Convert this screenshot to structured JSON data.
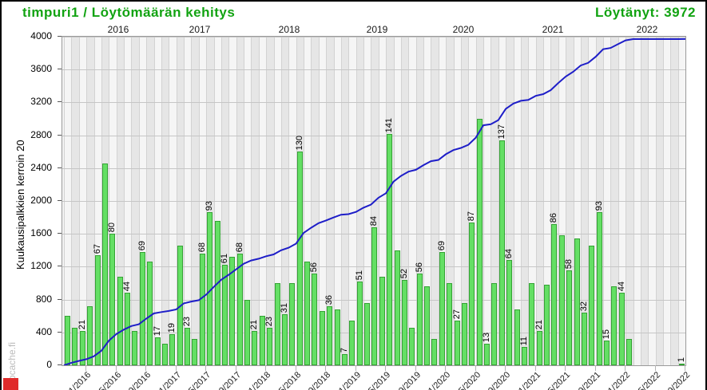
{
  "header": {
    "title": "timpuri1 / Löytömäärän kehitys",
    "found_label": "Löytänyt: 3972"
  },
  "watermark": "Geocache.fi",
  "colors": {
    "accent_green": "#12a312",
    "bar_fill": "#64df64",
    "bar_border": "#35a335",
    "cumulative_line": "#1e1ec8",
    "red_corner": "#e02b2b"
  },
  "chart_data": {
    "type": "bar",
    "title": "timpuri1 / Löytömäärän kehitys",
    "subtitle": "Löytänyt: 3972",
    "total_found": 3972,
    "ylabel": "Kuukausipalkkien kerroin 20",
    "bar_scale": 20,
    "ylim": [
      0,
      4000
    ],
    "grid": true,
    "y_ticks": [
      0,
      400,
      800,
      1200,
      1600,
      2000,
      2400,
      2800,
      3200,
      3600,
      4000
    ],
    "year_labels": [
      "2016",
      "2017",
      "2018",
      "2019",
      "2020",
      "2021",
      "2022"
    ],
    "x_ticks": [
      "01/2016",
      "05/2016",
      "09/2016",
      "01/2017",
      "05/2017",
      "09/2017",
      "01/2018",
      "05/2018",
      "09/2018",
      "01/2019",
      "05/2019",
      "09/2019",
      "01/2020",
      "05/2020",
      "09/2020",
      "01/2021",
      "05/2021",
      "09/2021",
      "01/2022",
      "05/2022",
      "09/2022"
    ],
    "series_note": "months = [month, finds, value_label_shown]; green bars are drawn at finds*20 on the 0-4000 axis; blue line is cumulative finds ending at 3972",
    "months": [
      [
        "2015-10",
        30,
        0
      ],
      [
        "2015-11",
        23,
        0
      ],
      [
        "2015-12",
        21,
        1
      ],
      [
        "2016-01",
        36,
        0
      ],
      [
        "2016-02",
        67,
        1
      ],
      [
        "2016-03",
        123,
        0
      ],
      [
        "2016-04",
        80,
        1
      ],
      [
        "2016-05",
        54,
        0
      ],
      [
        "2016-06",
        44,
        1
      ],
      [
        "2016-07",
        21,
        0
      ],
      [
        "2016-08",
        69,
        1
      ],
      [
        "2016-09",
        63,
        0
      ],
      [
        "2016-10",
        17,
        1
      ],
      [
        "2016-11",
        13,
        0
      ],
      [
        "2016-12",
        19,
        1
      ],
      [
        "2017-01",
        73,
        0
      ],
      [
        "2017-02",
        23,
        1
      ],
      [
        "2017-03",
        16,
        0
      ],
      [
        "2017-04",
        68,
        1
      ],
      [
        "2017-05",
        93,
        1
      ],
      [
        "2017-06",
        88,
        0
      ],
      [
        "2017-07",
        61,
        1
      ],
      [
        "2017-08",
        66,
        0
      ],
      [
        "2017-09",
        68,
        1
      ],
      [
        "2017-10",
        40,
        0
      ],
      [
        "2017-11",
        21,
        1
      ],
      [
        "2017-12",
        30,
        0
      ],
      [
        "2018-01",
        23,
        1
      ],
      [
        "2018-02",
        50,
        0
      ],
      [
        "2018-03",
        31,
        1
      ],
      [
        "2018-04",
        50,
        0
      ],
      [
        "2018-05",
        130,
        1
      ],
      [
        "2018-06",
        63,
        0
      ],
      [
        "2018-07",
        56,
        1
      ],
      [
        "2018-08",
        33,
        0
      ],
      [
        "2018-09",
        36,
        1
      ],
      [
        "2018-10",
        34,
        0
      ],
      [
        "2018-11",
        7,
        1
      ],
      [
        "2018-12",
        27,
        0
      ],
      [
        "2019-01",
        51,
        1
      ],
      [
        "2019-02",
        38,
        0
      ],
      [
        "2019-03",
        84,
        1
      ],
      [
        "2019-04",
        54,
        0
      ],
      [
        "2019-05",
        141,
        1
      ],
      [
        "2019-06",
        70,
        0
      ],
      [
        "2019-07",
        52,
        1
      ],
      [
        "2019-08",
        23,
        0
      ],
      [
        "2019-09",
        56,
        1
      ],
      [
        "2019-10",
        48,
        0
      ],
      [
        "2019-11",
        16,
        0
      ],
      [
        "2019-12",
        69,
        1
      ],
      [
        "2020-01",
        50,
        0
      ],
      [
        "2020-02",
        27,
        1
      ],
      [
        "2020-03",
        38,
        0
      ],
      [
        "2020-04",
        87,
        1
      ],
      [
        "2020-05",
        150,
        0
      ],
      [
        "2020-06",
        13,
        1
      ],
      [
        "2020-07",
        50,
        0
      ],
      [
        "2020-08",
        137,
        1
      ],
      [
        "2020-09",
        64,
        1
      ],
      [
        "2020-10",
        34,
        0
      ],
      [
        "2020-11",
        11,
        1
      ],
      [
        "2020-12",
        50,
        0
      ],
      [
        "2021-01",
        21,
        1
      ],
      [
        "2021-02",
        49,
        0
      ],
      [
        "2021-03",
        86,
        1
      ],
      [
        "2021-04",
        79,
        0
      ],
      [
        "2021-05",
        58,
        1
      ],
      [
        "2021-06",
        77,
        0
      ],
      [
        "2021-07",
        32,
        1
      ],
      [
        "2021-08",
        73,
        0
      ],
      [
        "2021-09",
        93,
        1
      ],
      [
        "2021-10",
        15,
        1
      ],
      [
        "2021-11",
        48,
        0
      ],
      [
        "2021-12",
        44,
        1
      ],
      [
        "2022-01",
        16,
        0
      ],
      [
        "2022-02",
        0,
        0
      ],
      [
        "2022-03",
        0,
        0
      ],
      [
        "2022-04",
        0,
        0
      ],
      [
        "2022-05",
        0,
        0
      ],
      [
        "2022-06",
        0,
        0
      ],
      [
        "2022-07",
        0,
        0
      ],
      [
        "2022-08",
        1,
        1
      ]
    ]
  }
}
